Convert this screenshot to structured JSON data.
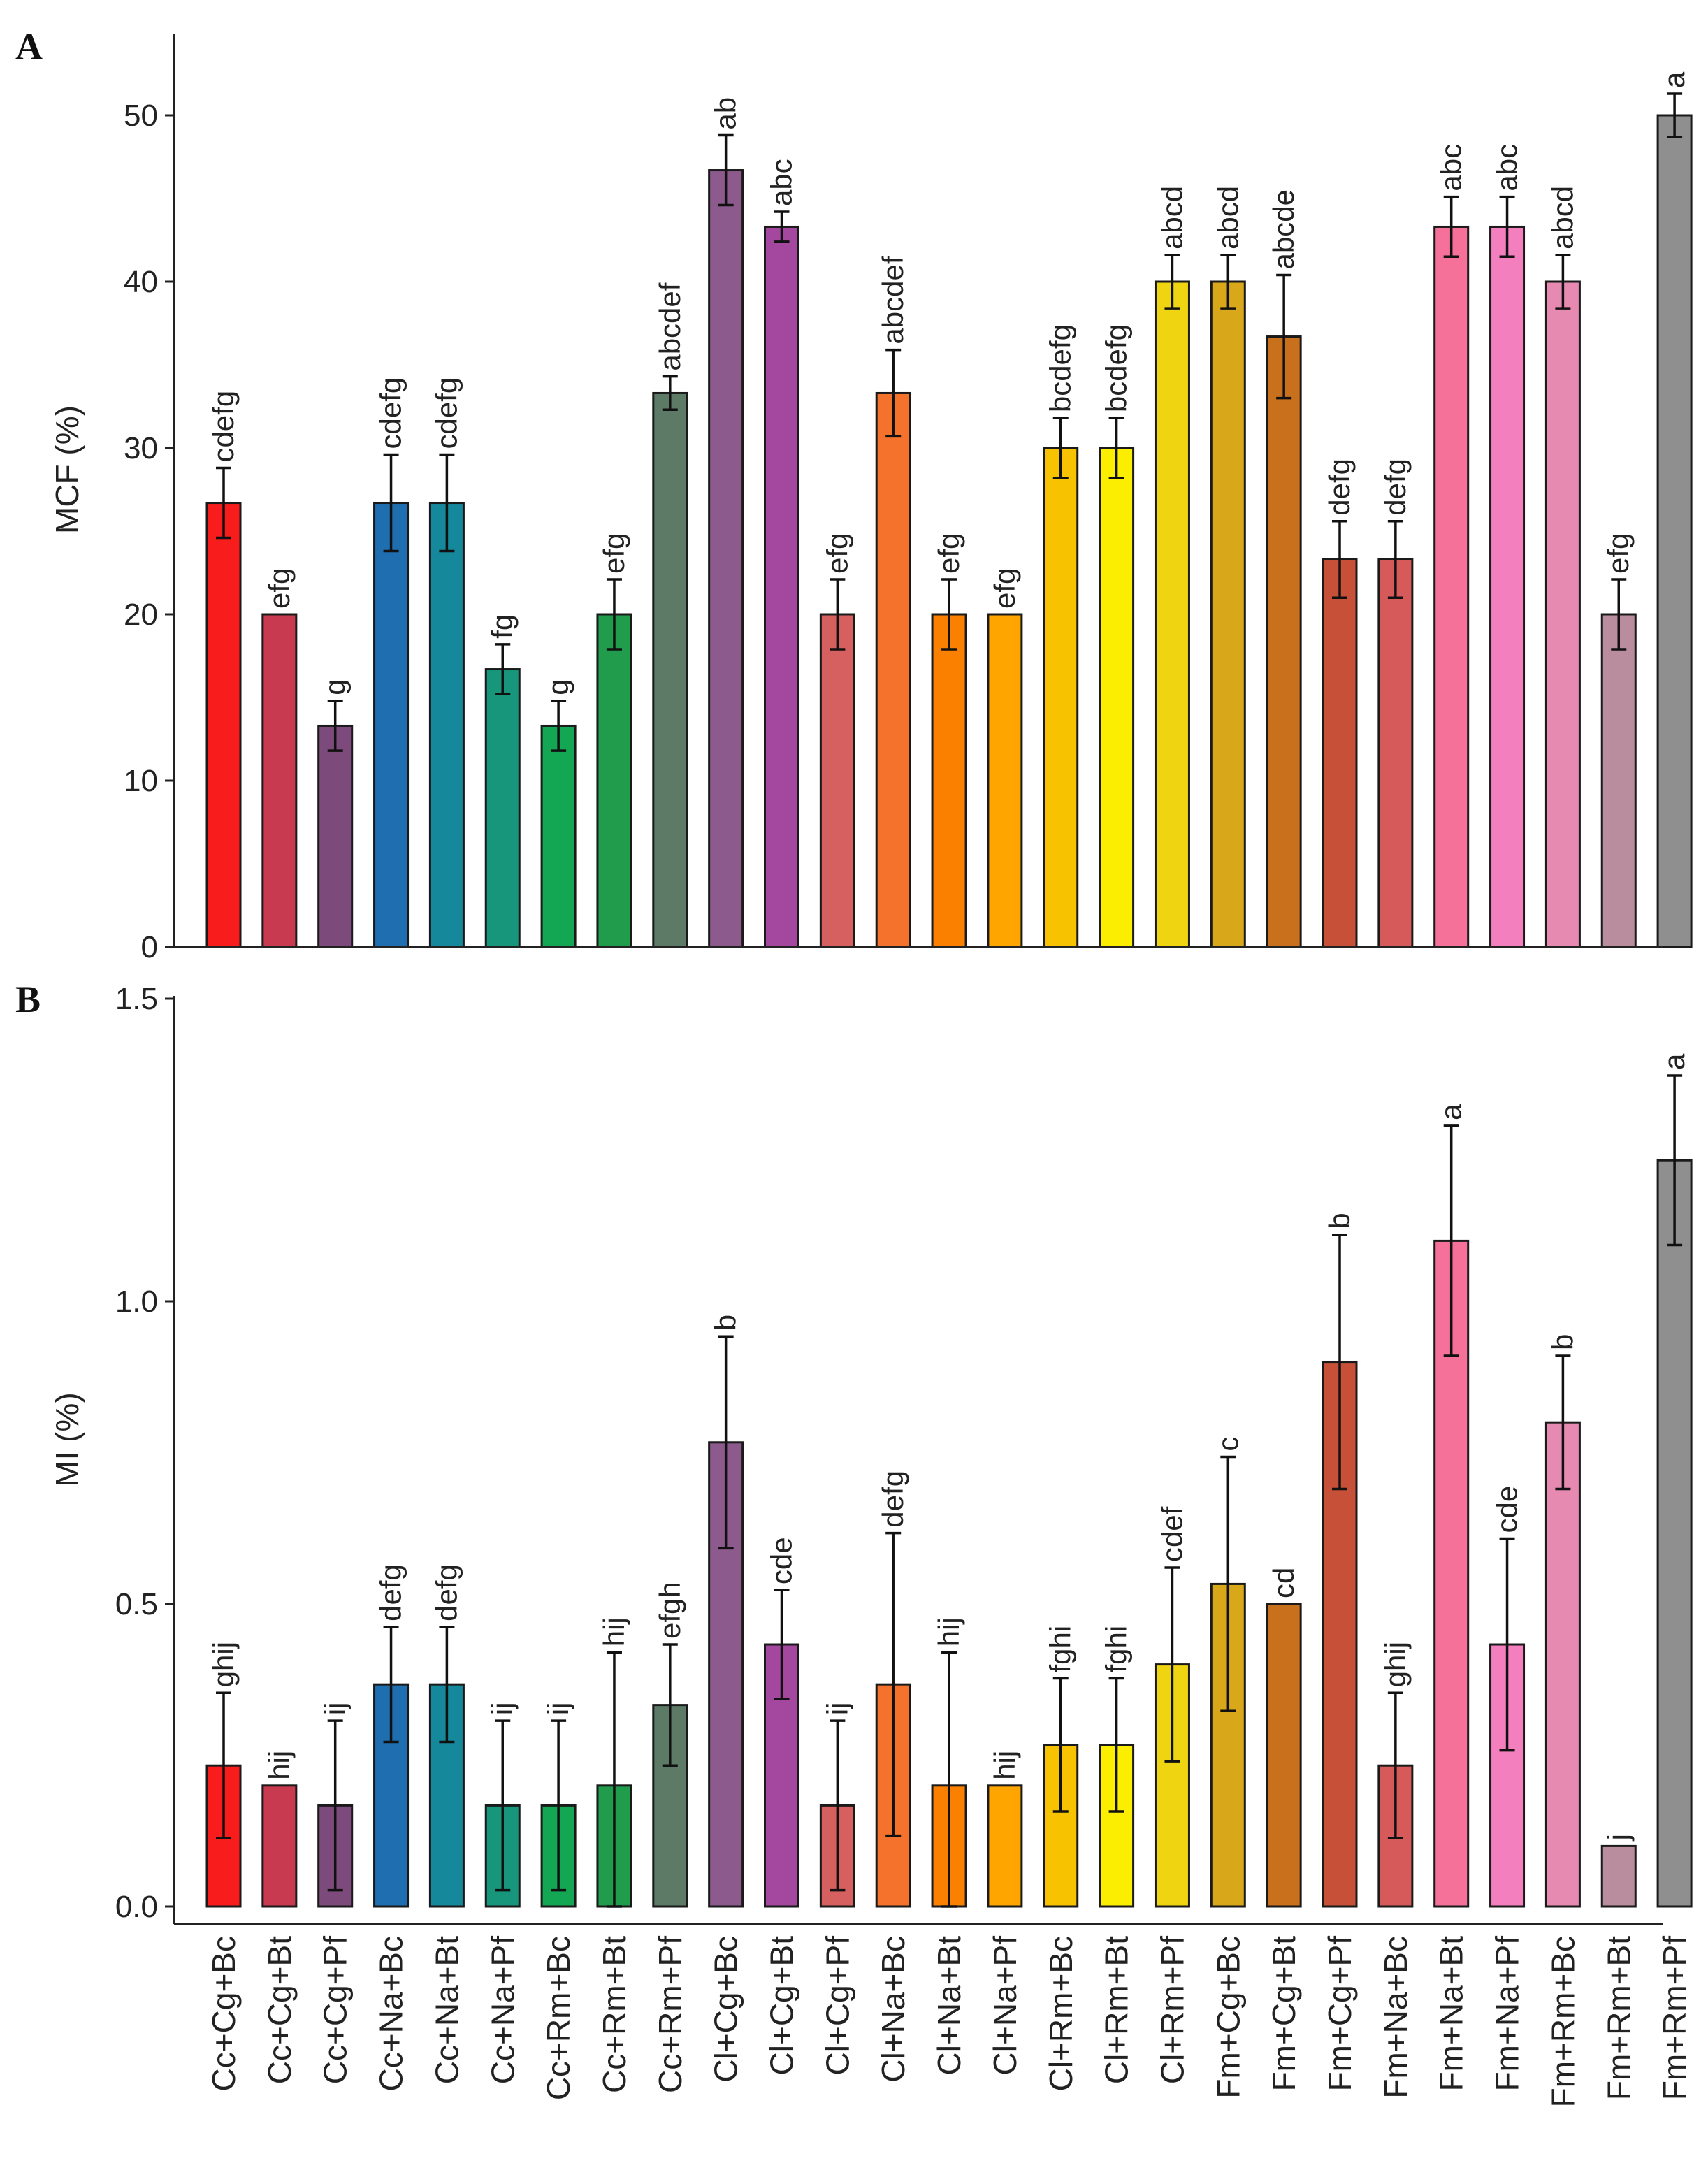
{
  "chart_data": [
    {
      "type": "bar",
      "panel": "A",
      "ylabel": "MCF (%)",
      "xlabel": "",
      "ylim": [
        0,
        55
      ],
      "yticks": [
        0,
        10,
        20,
        30,
        40,
        50
      ],
      "categories": [
        "Cc+Cg+Bc",
        "Cc+Cg+Bt",
        "Cc+Cg+Pf",
        "Cc+Na+Bc",
        "Cc+Na+Bt",
        "Cc+Na+Pf",
        "Cc+Rm+Bc",
        "Cc+Rm+Bt",
        "Cc+Rm+Pf",
        "Cl+Cg+Bc",
        "Cl+Cg+Bt",
        "Cl+Cg+Pf",
        "Cl+Na+Bc",
        "Cl+Na+Bt",
        "Cl+Na+Pf",
        "Cl+Rm+Bc",
        "Cl+Rm+Bt",
        "Cl+Rm+Pf",
        "Fm+Cg+Bc",
        "Fm+Cg+Bt",
        "Fm+Cg+Pf",
        "Fm+Na+Bc",
        "Fm+Na+Bt",
        "Fm+Na+Pf",
        "Fm+Rm+Bc",
        "Fm+Rm+Bt",
        "Fm+Rm+Pf"
      ],
      "values": [
        26.7,
        20,
        13.3,
        26.7,
        26.7,
        16.7,
        13.3,
        20,
        33.3,
        46.7,
        43.3,
        20,
        33.3,
        20,
        20,
        30,
        30,
        40,
        40,
        36.7,
        23.3,
        23.3,
        43.3,
        43.3,
        40,
        20,
        50
      ],
      "errors": [
        2.1,
        0,
        1.5,
        2.9,
        2.9,
        1.5,
        1.5,
        2.1,
        1.0,
        2.1,
        0.9,
        2.1,
        2.6,
        2.1,
        0,
        1.8,
        1.8,
        1.6,
        1.6,
        3.7,
        2.3,
        2.3,
        1.8,
        1.8,
        1.6,
        2.1,
        1.3
      ],
      "letters": [
        "cdefg",
        "efg",
        "g",
        "cdefg",
        "cdefg",
        "fg",
        "g",
        "efg",
        "abcdef",
        "ab",
        "abc",
        "efg",
        "abcdef",
        "efg",
        "efg",
        "bcdefg",
        "bcdefg",
        "abcd",
        "abcd",
        "abcde",
        "defg",
        "defg",
        "abc",
        "abc",
        "abcd",
        "efg",
        "a"
      ],
      "colors": [
        "#f81c1c",
        "#c83a4f",
        "#7d4b7b",
        "#1f6fb0",
        "#16889c",
        "#17967b",
        "#14a753",
        "#209c4c",
        "#5d7a67",
        "#8c5a8d",
        "#a3479f",
        "#d6605f",
        "#f4722b",
        "#fb8000",
        "#ffa500",
        "#f7c200",
        "#fcee00",
        "#efd511",
        "#d9a81a",
        "#c8701c",
        "#c65138",
        "#d65a5a",
        "#f6719a",
        "#f47fbf",
        "#e78ab2",
        "#b98c9e",
        "#8f8f8f"
      ]
    },
    {
      "type": "bar",
      "panel": "B",
      "ylabel": "MI (%)",
      "xlabel": "",
      "ylim": [
        0,
        1.5
      ],
      "yticks": [
        "0.0",
        "0.5",
        "1.0",
        "1.5"
      ],
      "categories": [
        "Cc+Cg+Bc",
        "Cc+Cg+Bt",
        "Cc+Cg+Pf",
        "Cc+Na+Bc",
        "Cc+Na+Bt",
        "Cc+Na+Pf",
        "Cc+Rm+Bc",
        "Cc+Rm+Bt",
        "Cc+Rm+Pf",
        "Cl+Cg+Bc",
        "Cl+Cg+Bt",
        "Cl+Cg+Pf",
        "Cl+Na+Bc",
        "Cl+Na+Bt",
        "Cl+Na+Pf",
        "Cl+Rm+Bc",
        "Cl+Rm+Bt",
        "Cl+Rm+Pf",
        "Fm+Cg+Bc",
        "Fm+Cg+Bt",
        "Fm+Cg+Pf",
        "Fm+Na+Bc",
        "Fm+Na+Bt",
        "Fm+Na+Pf",
        "Fm+Rm+Bc",
        "Fm+Rm+Bt",
        "Fm+Rm+Pf"
      ],
      "values": [
        0.233,
        0.2,
        0.167,
        0.367,
        0.367,
        0.167,
        0.167,
        0.2,
        0.333,
        0.767,
        0.433,
        0.167,
        0.367,
        0.2,
        0.2,
        0.267,
        0.267,
        0.4,
        0.533,
        0.5,
        0.9,
        0.233,
        1.1,
        0.433,
        0.8,
        0.1,
        1.233
      ],
      "errors": [
        0.12,
        0,
        0.14,
        0.095,
        0.095,
        0.14,
        0.14,
        0.22,
        0.1,
        0.175,
        0.09,
        0.14,
        0.25,
        0.22,
        0,
        0.11,
        0.11,
        0.16,
        0.21,
        0,
        0.21,
        0.12,
        0.19,
        0.175,
        0.11,
        0,
        0.14
      ],
      "letters": [
        "ghij",
        "hij",
        "ij",
        "defg",
        "defg",
        "ij",
        "ij",
        "hij",
        "efgh",
        "b",
        "cde",
        "ij",
        "defg",
        "hij",
        "hij",
        "fghi",
        "fghi",
        "cdef",
        "c",
        "cd",
        "b",
        "ghij",
        "a",
        "cde",
        "b",
        "j",
        "a"
      ],
      "colors": [
        "#f81c1c",
        "#c83a4f",
        "#7d4b7b",
        "#1f6fb0",
        "#16889c",
        "#17967b",
        "#14a753",
        "#209c4c",
        "#5d7a67",
        "#8c5a8d",
        "#a3479f",
        "#d6605f",
        "#f4722b",
        "#fb8000",
        "#ffa500",
        "#f7c200",
        "#fcee00",
        "#efd511",
        "#d9a81a",
        "#c8701c",
        "#c65138",
        "#d65a5a",
        "#f6719a",
        "#f47fbf",
        "#e78ab2",
        "#b98c9e",
        "#8f8f8f"
      ]
    }
  ]
}
